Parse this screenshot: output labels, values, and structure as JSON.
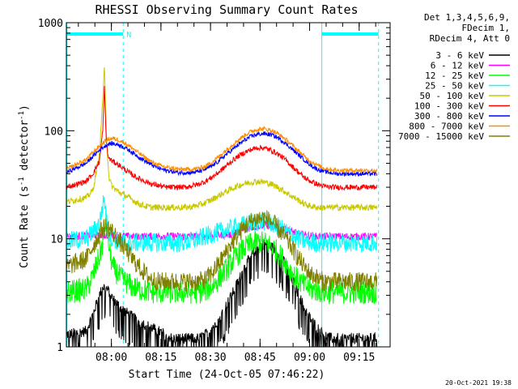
{
  "chart_data": {
    "type": "line",
    "title": "RHESSI Observing Summary Count Rates",
    "xlabel": "Start Time (24-Oct-05 07:46:22)",
    "ylabel_main": "Count Rate (s",
    "ylabel_sup1": "-1",
    "ylabel_mid": " detector",
    "ylabel_sup2": "-1",
    "ylabel_end": ")",
    "y_scale": "log",
    "ylim": [
      1,
      1000
    ],
    "y_ticks": [
      1,
      10,
      100,
      1000
    ],
    "y_tick_labels": [
      "1",
      "10",
      "100",
      "1000"
    ],
    "x_unit": "minutes since 07:46:22",
    "xlim": [
      0,
      98
    ],
    "x_ticks": [
      13.63,
      28.63,
      43.63,
      58.63,
      73.63,
      88.63
    ],
    "x_tick_labels": [
      "08:00",
      "08:15",
      "08:30",
      "08:45",
      "09:00",
      "09:15"
    ],
    "config_lines": [
      "Det 1,3,4,5,6,9,",
      "FDecim 1,",
      "RDecim 4, Att 0"
    ],
    "flag_label": "N",
    "night_bars": [
      [
        0,
        17.2
      ],
      [
        77.2,
        94.5
      ]
    ],
    "dashed_markers": [
      17.2,
      94.5
    ],
    "series": [
      {
        "name": "3 - 6 keV",
        "color": "#000000",
        "x": [
          0,
          6,
          8,
          10,
          11,
          12,
          13,
          14,
          16,
          18,
          20,
          22,
          24,
          26,
          28,
          30,
          32,
          34,
          36,
          38,
          40,
          42,
          44,
          46,
          48,
          50,
          52,
          54,
          56,
          58,
          60,
          62,
          64,
          66,
          68,
          70,
          72,
          74,
          76,
          78,
          80,
          82,
          84,
          86,
          88,
          90,
          92,
          94
        ],
        "y": [
          1.3,
          1.4,
          2.0,
          3.0,
          3.6,
          3.5,
          3.2,
          2.8,
          2.4,
          2.1,
          1.9,
          1.7,
          1.6,
          1.5,
          1.4,
          1.3,
          1.2,
          1.2,
          1.2,
          1.2,
          1.2,
          1.3,
          1.5,
          1.8,
          2.3,
          3.0,
          4.0,
          5.5,
          7.0,
          8.5,
          9.0,
          8.5,
          7.5,
          6.0,
          4.5,
          3.2,
          2.3,
          1.8,
          1.5,
          1.3,
          1.2,
          1.2,
          1.2,
          1.2,
          1.2,
          1.2,
          1.2,
          1.2
        ]
      },
      {
        "name": "6 - 12 keV",
        "color": "#ff00ff",
        "x": [
          0,
          10,
          20,
          30,
          40,
          50,
          55,
          60,
          65,
          70,
          75,
          80,
          90,
          94
        ],
        "y": [
          10.5,
          10.8,
          10.5,
          10.6,
          10.5,
          11.0,
          12.5,
          13.5,
          12.5,
          11.2,
          10.5,
          10.5,
          10.5,
          10.5
        ]
      },
      {
        "name": "12 - 25 keV",
        "color": "#00ff00",
        "x": [
          0,
          6,
          8,
          10,
          11,
          12,
          13,
          14,
          16,
          18,
          20,
          22,
          24,
          26,
          28,
          30,
          32,
          34,
          36,
          38,
          40,
          42,
          44,
          46,
          48,
          50,
          52,
          54,
          56,
          58,
          60,
          62,
          64,
          66,
          68,
          70,
          72,
          74,
          76,
          78,
          80,
          82,
          84,
          86,
          88,
          90,
          92,
          94
        ],
        "y": [
          3.2,
          3.4,
          4.5,
          7.0,
          9.0,
          15.0,
          8.0,
          5.5,
          4.5,
          4.0,
          3.6,
          3.4,
          3.3,
          3.2,
          3.2,
          3.2,
          3.2,
          3.2,
          3.2,
          3.2,
          3.2,
          3.3,
          3.6,
          4.2,
          5.0,
          6.0,
          7.2,
          8.2,
          9.0,
          9.3,
          9.2,
          8.6,
          7.5,
          6.2,
          5.0,
          4.2,
          3.7,
          3.4,
          3.3,
          3.2,
          3.2,
          3.2,
          3.2,
          3.2,
          3.2,
          3.2,
          3.2,
          3.2
        ]
      },
      {
        "name": "25 - 50 keV",
        "color": "#00ffff",
        "x": [
          0,
          6,
          8,
          10,
          11,
          11.5,
          12,
          12.5,
          13,
          14,
          16,
          18,
          20,
          22,
          24,
          26,
          28,
          30,
          32,
          34,
          36,
          38,
          40,
          42,
          44,
          46,
          48,
          50,
          52,
          54,
          56,
          58,
          60,
          62,
          64,
          66,
          68,
          70,
          72,
          74,
          76,
          78,
          80,
          82,
          84,
          86,
          88,
          90,
          92,
          94
        ],
        "y": [
          9.5,
          10.0,
          11.5,
          14.0,
          20.0,
          24.0,
          16.0,
          12.0,
          11.0,
          10.0,
          9.5,
          9.3,
          9.2,
          9.2,
          9.2,
          9.2,
          9.2,
          9.2,
          9.2,
          9.2,
          9.3,
          9.5,
          10.0,
          10.5,
          11.0,
          11.5,
          12.0,
          12.5,
          13.0,
          13.5,
          14.0,
          14.5,
          14.5,
          14.0,
          13.0,
          12.0,
          11.0,
          10.0,
          9.5,
          9.3,
          9.2,
          9.2,
          9.2,
          9.2,
          9.2,
          9.2,
          9.2,
          9.2,
          9.2,
          9.2
        ]
      },
      {
        "name": "50 - 100 keV",
        "color": "#c8c800",
        "x": [
          0,
          6,
          8,
          10,
          11,
          11.5,
          12,
          12.5,
          13,
          14,
          16,
          18,
          20,
          22,
          24,
          26,
          28,
          30,
          32,
          34,
          36,
          38,
          40,
          42,
          44,
          46,
          48,
          50,
          52,
          54,
          56,
          58,
          60,
          62,
          64,
          66,
          68,
          70,
          72,
          74,
          76,
          78,
          80,
          82,
          84,
          86,
          88,
          90,
          92,
          94
        ],
        "y": [
          22,
          24,
          28,
          60,
          200,
          380,
          120,
          55,
          35,
          30,
          27,
          25,
          23,
          21,
          20,
          19.5,
          19.5,
          19.5,
          19.5,
          19.5,
          19.5,
          19.8,
          20.5,
          21.5,
          23,
          25,
          27,
          29,
          31,
          32.5,
          33.5,
          34,
          33.5,
          32,
          30,
          27.5,
          25,
          23,
          21,
          20,
          19.5,
          19.5,
          19.5,
          19.5,
          19.5,
          19.5,
          19.5,
          19.5,
          19.5,
          19.5
        ]
      },
      {
        "name": "100 - 300 keV",
        "color": "#ff0000",
        "x": [
          0,
          6,
          8,
          10,
          11,
          11.5,
          12,
          12.5,
          13,
          14,
          16,
          18,
          20,
          22,
          24,
          26,
          28,
          30,
          32,
          34,
          36,
          38,
          40,
          42,
          44,
          46,
          48,
          50,
          52,
          54,
          56,
          58,
          60,
          62,
          64,
          66,
          68,
          70,
          72,
          74,
          76,
          78,
          80,
          82,
          84,
          86,
          88,
          90,
          92,
          94
        ],
        "y": [
          30,
          34,
          40,
          52,
          100,
          250,
          90,
          60,
          55,
          52,
          48,
          43,
          39,
          36,
          34,
          32,
          31,
          30,
          30,
          30,
          30,
          31,
          32,
          34,
          37,
          41,
          46,
          52,
          58,
          63,
          67,
          70,
          69,
          66,
          61,
          55,
          48,
          42,
          37,
          34,
          32,
          30.5,
          30,
          30,
          30,
          30,
          30,
          30,
          30,
          30
        ]
      },
      {
        "name": "300 - 800 keV",
        "color": "#0000ff",
        "x": [
          0,
          6,
          8,
          10,
          11,
          12,
          13,
          14,
          16,
          18,
          20,
          22,
          24,
          26,
          28,
          30,
          32,
          34,
          36,
          38,
          40,
          42,
          44,
          46,
          48,
          50,
          52,
          54,
          56,
          58,
          60,
          62,
          64,
          66,
          68,
          70,
          72,
          74,
          76,
          78,
          80,
          82,
          84,
          86,
          88,
          90,
          92,
          94
        ],
        "y": [
          41,
          50,
          58,
          66,
          70,
          73,
          76,
          76,
          74,
          69,
          63,
          57,
          52,
          48,
          45,
          43,
          42,
          41,
          41,
          41,
          42,
          44,
          47,
          52,
          59,
          66,
          74,
          82,
          89,
          93,
          94,
          92,
          86,
          78,
          69,
          61,
          54,
          48,
          44,
          42,
          41,
          40,
          40,
          40,
          40,
          40,
          40,
          40
        ]
      },
      {
        "name": "800 - 7000 keV",
        "color": "#ff8c00",
        "x": [
          0,
          6,
          8,
          10,
          11,
          12,
          13,
          14,
          16,
          18,
          20,
          22,
          24,
          26,
          28,
          30,
          32,
          34,
          36,
          38,
          40,
          42,
          44,
          46,
          48,
          50,
          52,
          54,
          56,
          58,
          60,
          62,
          64,
          66,
          68,
          70,
          72,
          74,
          76,
          78,
          80,
          82,
          84,
          86,
          88,
          90,
          92,
          94
        ],
        "y": [
          44,
          54,
          63,
          72,
          77,
          81,
          84,
          85,
          82,
          76,
          69,
          62,
          56,
          51,
          48,
          46,
          45,
          44,
          44,
          44,
          45,
          47,
          51,
          57,
          65,
          73,
          82,
          91,
          99,
          103,
          104,
          101,
          94,
          85,
          75,
          66,
          58,
          52,
          48,
          45,
          44,
          43,
          43,
          43,
          43,
          43,
          43,
          43
        ]
      },
      {
        "name": "7000 - 15000 keV",
        "color": "#808000",
        "x": [
          0,
          6,
          8,
          10,
          11,
          12,
          13,
          14,
          16,
          18,
          20,
          22,
          24,
          26,
          28,
          30,
          32,
          34,
          36,
          38,
          40,
          42,
          44,
          46,
          48,
          50,
          52,
          54,
          56,
          58,
          60,
          62,
          64,
          66,
          68,
          70,
          72,
          74,
          76,
          78,
          80,
          82,
          84,
          86,
          88,
          90,
          92,
          94
        ],
        "y": [
          5.5,
          6.5,
          8.5,
          11.0,
          12.5,
          13.0,
          12.5,
          11.5,
          9.5,
          8.0,
          6.5,
          5.5,
          4.7,
          4.2,
          4.0,
          4.0,
          4.0,
          4.0,
          4.0,
          4.0,
          4.0,
          4.2,
          4.8,
          5.8,
          7.2,
          9.0,
          11.0,
          13.0,
          14.5,
          15.5,
          15.5,
          14.5,
          12.5,
          10.5,
          8.5,
          6.8,
          5.5,
          4.7,
          4.3,
          4.0,
          4.0,
          4.0,
          4.0,
          4.0,
          4.0,
          4.0,
          4.0,
          4.0
        ]
      }
    ],
    "footer_date": "20-Oct-2021 19:38"
  }
}
